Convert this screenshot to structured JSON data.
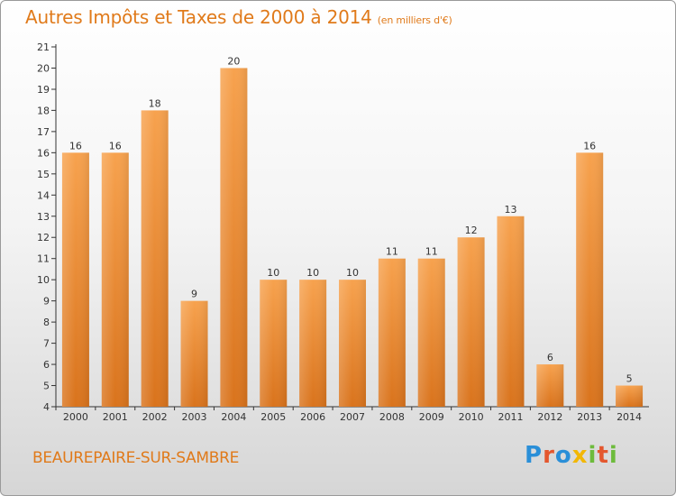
{
  "chart_data": {
    "type": "bar",
    "title": "Autres Impôts et Taxes de 2000 à 2014",
    "subtitle": "(en milliers d'€)",
    "categories": [
      "2000",
      "2001",
      "2002",
      "2003",
      "2004",
      "2005",
      "2006",
      "2007",
      "2008",
      "2009",
      "2010",
      "2011",
      "2012",
      "2013",
      "2014"
    ],
    "values": [
      16,
      16,
      18,
      9,
      20,
      10,
      10,
      10,
      11,
      11,
      12,
      13,
      6,
      16,
      5
    ],
    "ylim": [
      4,
      21
    ],
    "yticks": [
      4,
      5,
      6,
      7,
      8,
      9,
      10,
      11,
      12,
      13,
      14,
      15,
      16,
      17,
      18,
      19,
      20,
      21
    ],
    "grid": false,
    "bar_color": "#f0923a"
  },
  "commune": "BEAUREPAIRE-SUR-SAMBRE",
  "logo": {
    "text": "Proxiti"
  }
}
